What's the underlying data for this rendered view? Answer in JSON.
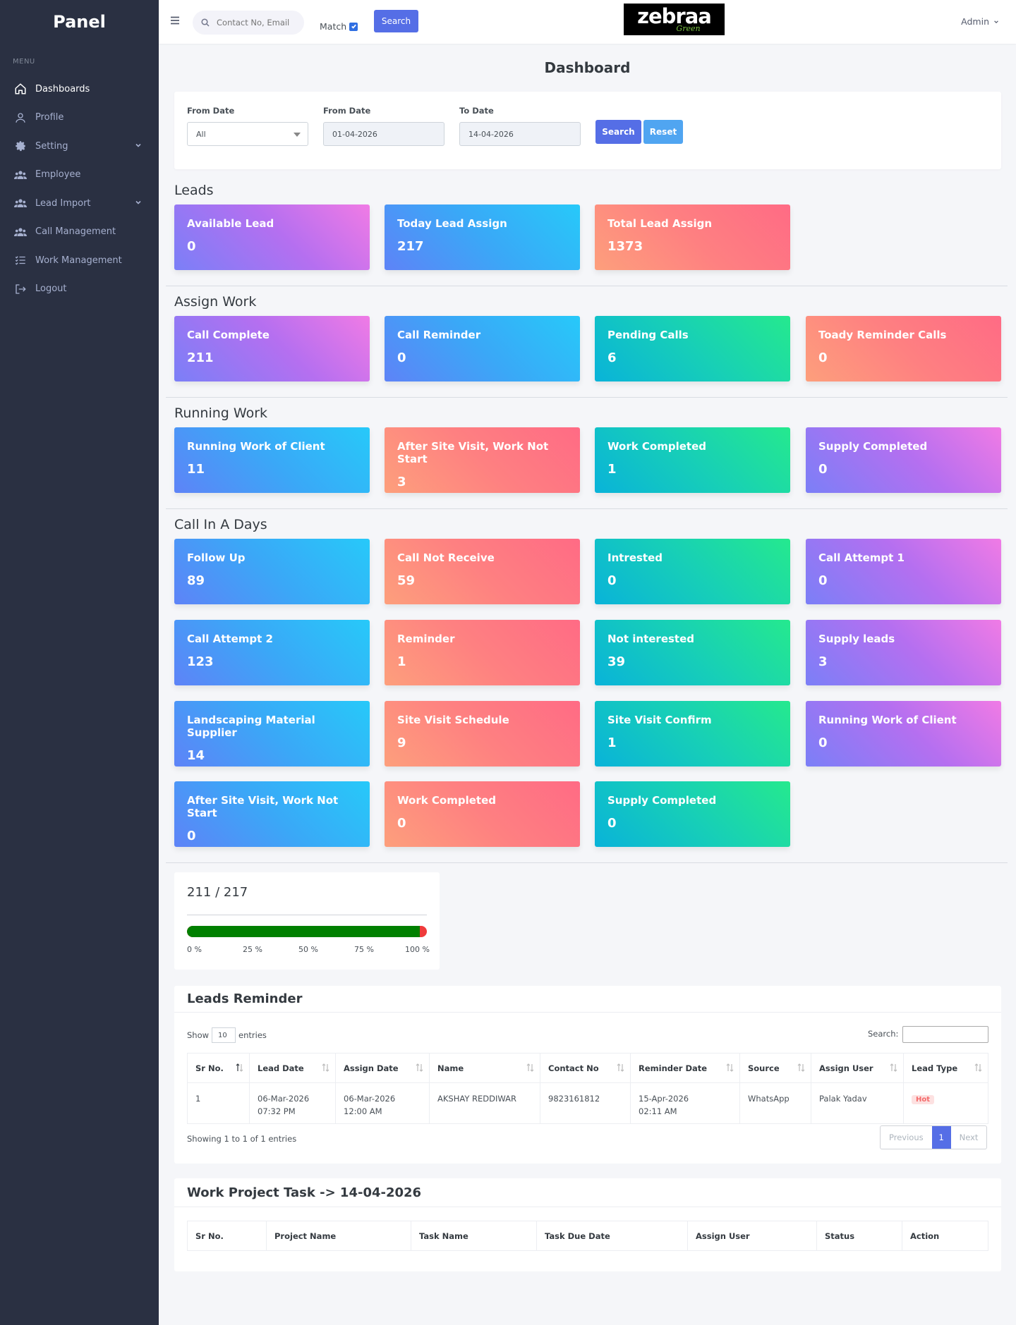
{
  "sidebar": {
    "brand": "Panel",
    "menu_title": "MENU",
    "items": [
      {
        "label": "Dashboards",
        "icon": "home-icon"
      },
      {
        "label": "Profile",
        "icon": "user-icon"
      },
      {
        "label": "Setting",
        "icon": "gear-icon"
      },
      {
        "label": "Employee",
        "icon": "users-icon"
      },
      {
        "label": "Lead Import",
        "icon": "users-icon"
      },
      {
        "label": "Call Management",
        "icon": "users-icon"
      },
      {
        "label": "Work Management",
        "icon": "list-icon"
      },
      {
        "label": "Logout",
        "icon": "logout-icon"
      }
    ]
  },
  "topbar": {
    "search_placeholder": "Contact No, Email",
    "match_label": "Match",
    "match_checked": true,
    "search_button": "Search",
    "logo_text": "zebraa",
    "logo_sub": "Green",
    "user": "Admin"
  },
  "page": {
    "title": "Dashboard"
  },
  "filter": {
    "from_date_label": "From Date",
    "select_value": "All",
    "from_date_label2": "From Date",
    "from_date": "01-04-2026",
    "to_date_label": "To Date",
    "to_date": "14-04-2026",
    "search_button": "Search",
    "reset_button": "Reset"
  },
  "sections": [
    {
      "title": "Leads",
      "cards": [
        {
          "title": "Available Lead",
          "value": "0"
        },
        {
          "title": "Today Lead Assign",
          "value": "217"
        },
        {
          "title": "Total Lead Assign",
          "value": "1373"
        }
      ]
    },
    {
      "title": "Assign Work",
      "cards": [
        {
          "title": "Call Complete",
          "value": "211"
        },
        {
          "title": "Call Reminder",
          "value": "0"
        },
        {
          "title": "Pending Calls",
          "value": "6"
        },
        {
          "title": "Toady Reminder Calls",
          "value": "0"
        }
      ]
    },
    {
      "title": "Running Work",
      "cards": [
        {
          "title": "Running Work of Client",
          "value": "11"
        },
        {
          "title": "After Site Visit, Work Not Start",
          "value": "3"
        },
        {
          "title": "Work Completed",
          "value": "1"
        },
        {
          "title": "Supply Completed",
          "value": "0"
        }
      ]
    },
    {
      "title": "Call In A Days",
      "cards": [
        {
          "title": "Follow Up",
          "value": "89"
        },
        {
          "title": "Call Not Receive",
          "value": "59"
        },
        {
          "title": "Intrested",
          "value": "0"
        },
        {
          "title": "Call Attempt 1",
          "value": "0"
        },
        {
          "title": "Call Attempt 2",
          "value": "123"
        },
        {
          "title": "Reminder",
          "value": "1"
        },
        {
          "title": "Not interested",
          "value": "39"
        },
        {
          "title": "Supply leads",
          "value": "3"
        },
        {
          "title": "Landscaping Material Supplier",
          "value": "14"
        },
        {
          "title": "Site Visit Schedule",
          "value": "9"
        },
        {
          "title": "Site Visit Confirm",
          "value": "1"
        },
        {
          "title": "Running Work of Client",
          "value": "0"
        },
        {
          "title": "After Site Visit, Work Not Start",
          "value": "0"
        },
        {
          "title": "Work Completed",
          "value": "0"
        },
        {
          "title": "Supply Completed",
          "value": "0"
        }
      ]
    }
  ],
  "progress": {
    "label": "211 / 217",
    "fraction": 0.972,
    "ticks": [
      "0 %",
      "25 %",
      "50 %",
      "75 %",
      "100 %"
    ]
  },
  "reminders": {
    "title": "Leads Reminder",
    "show_label": "Show",
    "entries_value": "10",
    "entries_label": "entries",
    "search_label": "Search:",
    "columns": [
      "Sr No.",
      "Lead Date",
      "Assign Date",
      "Name",
      "Contact No",
      "Reminder Date",
      "Source",
      "Assign User",
      "Lead Type"
    ],
    "rows": [
      {
        "sr": "1",
        "lead_date": "06-Mar-2026",
        "lead_time": "07:32 PM",
        "assign_date": "06-Mar-2026",
        "assign_time": "12:00 AM",
        "name": "AKSHAY REDDIWAR",
        "contact": "9823161812",
        "reminder_date": "15-Apr-2026",
        "reminder_time": "02:11 AM",
        "source": "WhatsApp",
        "user": "Palak Yadav",
        "type": "Hot"
      }
    ],
    "showing": "Showing 1 to 1 of 1 entries",
    "previous": "Previous",
    "page": "1",
    "next": "Next"
  },
  "tasks": {
    "title": "Work Project Task -> 14-04-2026",
    "columns": [
      "Sr No.",
      "Project Name",
      "Task Name",
      "Task Due Date",
      "Assign User",
      "Status",
      "Action"
    ]
  },
  "colors": {
    "sidebar": "#2a3042",
    "primary": "#556ee6",
    "reset": "#50a5f1",
    "progress": "#008000"
  }
}
